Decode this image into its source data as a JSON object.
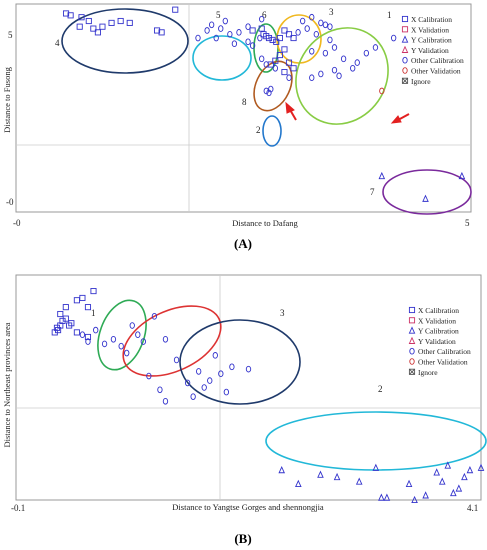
{
  "chart_data": [
    {
      "type": "scatter",
      "panel_label": "(A)",
      "xlabel": "Distance to Dafang",
      "ylabel": "Distance to Fusong",
      "xlim": [
        0,
        5
      ],
      "ylim": [
        -0.3,
        5.2
      ],
      "x_ticks": [
        "-0",
        "5"
      ],
      "y_ticks": [
        "5",
        "-0"
      ],
      "legend": {
        "placement": "top-right",
        "entries": [
          {
            "label": "X Calibration",
            "marker": "square",
            "color": "#3333cc"
          },
          {
            "label": "X Validation",
            "marker": "square",
            "color": "#cc3366"
          },
          {
            "label": "Y Calibration",
            "marker": "triangle",
            "color": "#3333cc"
          },
          {
            "label": "Y Validation",
            "marker": "triangle",
            "color": "#cc3366"
          },
          {
            "label": "Other Calibration",
            "marker": "circle",
            "color": "#3333cc"
          },
          {
            "label": "Other Validation",
            "marker": "circle",
            "color": "#cc3333"
          },
          {
            "label": "Ignore",
            "marker": "x-square",
            "color": "#555555"
          }
        ]
      },
      "series": [
        {
          "name": "X Calibration",
          "marker": "square",
          "color": "#3333cc",
          "points": [
            [
              0.55,
              4.95
            ],
            [
              0.6,
              4.9
            ],
            [
              0.72,
              4.85
            ],
            [
              0.8,
              4.75
            ],
            [
              0.7,
              4.6
            ],
            [
              0.85,
              4.55
            ],
            [
              0.9,
              4.45
            ],
            [
              0.95,
              4.6
            ],
            [
              1.05,
              4.7
            ],
            [
              1.15,
              4.75
            ],
            [
              1.25,
              4.7
            ],
            [
              1.55,
              4.5
            ],
            [
              1.6,
              4.45
            ],
            [
              1.75,
              5.05
            ],
            [
              2.6,
              4.5
            ],
            [
              2.7,
              4.55
            ],
            [
              2.72,
              4.4
            ],
            [
              2.75,
              4.35
            ],
            [
              2.78,
              4.3
            ],
            [
              2.82,
              4.25
            ],
            [
              2.86,
              4.2
            ],
            [
              2.9,
              4.3
            ],
            [
              2.95,
              4.5
            ],
            [
              3.0,
              4.4
            ],
            [
              3.05,
              4.3
            ],
            [
              2.95,
              4.0
            ],
            [
              2.9,
              3.85
            ],
            [
              2.85,
              3.7
            ],
            [
              2.8,
              3.6
            ],
            [
              3.0,
              3.65
            ],
            [
              3.05,
              3.5
            ],
            [
              2.95,
              3.4
            ]
          ]
        },
        {
          "name": "Y Calibration",
          "marker": "triangle",
          "color": "#3333cc",
          "points": [
            [
              4.02,
              0.65
            ],
            [
              4.9,
              0.65
            ],
            [
              4.5,
              0.05
            ]
          ]
        },
        {
          "name": "Other Calibration",
          "marker": "circle",
          "color": "#3333cc",
          "points": [
            [
              2.0,
              4.3
            ],
            [
              2.1,
              4.5
            ],
            [
              2.15,
              4.65
            ],
            [
              2.25,
              4.55
            ],
            [
              2.35,
              4.4
            ],
            [
              2.45,
              4.45
            ],
            [
              2.55,
              4.2
            ],
            [
              2.6,
              4.1
            ],
            [
              2.3,
              4.75
            ],
            [
              2.2,
              4.3
            ],
            [
              2.4,
              4.15
            ],
            [
              2.55,
              4.6
            ],
            [
              2.7,
              4.8
            ],
            [
              2.68,
              4.3
            ],
            [
              3.15,
              4.75
            ],
            [
              3.25,
              4.85
            ],
            [
              3.35,
              4.7
            ],
            [
              3.4,
              4.65
            ],
            [
              3.2,
              4.55
            ],
            [
              3.1,
              4.45
            ],
            [
              3.3,
              4.4
            ],
            [
              3.45,
              4.6
            ],
            [
              3.45,
              4.25
            ],
            [
              3.5,
              4.05
            ],
            [
              3.4,
              3.9
            ],
            [
              3.25,
              3.95
            ],
            [
              3.6,
              3.75
            ],
            [
              3.75,
              3.65
            ],
            [
              3.7,
              3.5
            ],
            [
              3.5,
              3.45
            ],
            [
              3.35,
              3.35
            ],
            [
              3.25,
              3.25
            ],
            [
              3.55,
              3.3
            ],
            [
              3.85,
              3.9
            ],
            [
              3.95,
              4.05
            ],
            [
              4.15,
              4.3
            ],
            [
              2.7,
              3.75
            ],
            [
              2.75,
              3.6
            ],
            [
              2.85,
              3.5
            ],
            [
              3.0,
              3.25
            ],
            [
              2.75,
              2.9
            ],
            [
              2.8,
              2.95
            ],
            [
              2.78,
              2.85
            ]
          ]
        },
        {
          "name": "Other Validation",
          "marker": "circle",
          "color": "#cc3333",
          "points": [
            [
              4.02,
              2.9
            ]
          ]
        }
      ],
      "cluster_labels": [
        "1",
        "2",
        "3",
        "4",
        "5",
        "6",
        "7",
        "8"
      ]
    },
    {
      "type": "scatter",
      "panel_label": "(B)",
      "xlabel": "Distance to Yangtse Gorges and shennongjia",
      "ylabel": "Distance to Northeast provinces area",
      "xlim": [
        -0.1,
        4.1
      ],
      "ylim": [
        -1.2,
        3.7
      ],
      "x_ticks": [
        "-0.1",
        "4.1"
      ],
      "legend": {
        "placement": "top-right",
        "entries": [
          {
            "label": "X Calibration",
            "marker": "square",
            "color": "#3333cc"
          },
          {
            "label": "X Validation",
            "marker": "square",
            "color": "#cc3366"
          },
          {
            "label": "Y Calibration",
            "marker": "triangle",
            "color": "#3333cc"
          },
          {
            "label": "Y Validation",
            "marker": "triangle",
            "color": "#cc3366"
          },
          {
            "label": "Other Calibration",
            "marker": "circle",
            "color": "#3333cc"
          },
          {
            "label": "Other Validation",
            "marker": "circle",
            "color": "#cc3333"
          },
          {
            "label": "Ignore",
            "marker": "x-square",
            "color": "#555555"
          }
        ]
      },
      "series": [
        {
          "name": "X Calibration",
          "marker": "square",
          "color": "#3333cc",
          "points": [
            [
              0.25,
              2.45
            ],
            [
              0.27,
              2.55
            ],
            [
              0.3,
              2.6
            ],
            [
              0.32,
              2.7
            ],
            [
              0.35,
              2.75
            ],
            [
              0.38,
              2.6
            ],
            [
              0.3,
              2.85
            ],
            [
              0.35,
              3.0
            ],
            [
              0.45,
              3.15
            ],
            [
              0.5,
              3.2
            ],
            [
              0.55,
              3.0
            ],
            [
              0.6,
              3.35
            ],
            [
              0.28,
              2.5
            ],
            [
              0.4,
              2.65
            ],
            [
              0.45,
              2.45
            ],
            [
              0.55,
              2.35
            ]
          ]
        },
        {
          "name": "Y Calibration",
          "marker": "triangle",
          "color": "#3333cc",
          "points": [
            [
              2.3,
              -0.55
            ],
            [
              2.45,
              -0.85
            ],
            [
              2.65,
              -0.65
            ],
            [
              2.8,
              -0.7
            ],
            [
              3.0,
              -0.8
            ],
            [
              3.15,
              -0.5
            ],
            [
              3.2,
              -1.15
            ],
            [
              3.25,
              -1.15
            ],
            [
              3.45,
              -0.85
            ],
            [
              3.5,
              -1.2
            ],
            [
              3.6,
              -1.1
            ],
            [
              3.7,
              -0.6
            ],
            [
              3.75,
              -0.8
            ],
            [
              3.8,
              -0.45
            ],
            [
              3.85,
              -1.05
            ],
            [
              3.9,
              -0.95
            ],
            [
              3.95,
              -0.7
            ],
            [
              4.0,
              -0.55
            ],
            [
              4.1,
              -0.5
            ]
          ]
        },
        {
          "name": "Other Calibration",
          "marker": "circle",
          "color": "#3333cc",
          "points": [
            [
              0.5,
              2.4
            ],
            [
              0.55,
              2.25
            ],
            [
              0.62,
              2.5
            ],
            [
              0.7,
              2.2
            ],
            [
              0.78,
              2.3
            ],
            [
              0.85,
              2.15
            ],
            [
              0.95,
              2.6
            ],
            [
              1.0,
              2.4
            ],
            [
              1.05,
              2.25
            ],
            [
              1.15,
              2.8
            ],
            [
              1.25,
              2.3
            ],
            [
              0.9,
              2.0
            ],
            [
              1.1,
              1.5
            ],
            [
              1.2,
              1.2
            ],
            [
              1.25,
              0.95
            ],
            [
              1.35,
              1.85
            ],
            [
              1.45,
              1.35
            ],
            [
              1.55,
              1.6
            ],
            [
              1.6,
              1.25
            ],
            [
              1.7,
              1.95
            ],
            [
              1.75,
              1.55
            ],
            [
              1.5,
              1.05
            ],
            [
              1.85,
              1.7
            ],
            [
              1.65,
              1.4
            ],
            [
              1.8,
              1.15
            ],
            [
              2.0,
              1.65
            ]
          ]
        }
      ],
      "cluster_labels": [
        "1",
        "2",
        "3"
      ]
    }
  ]
}
